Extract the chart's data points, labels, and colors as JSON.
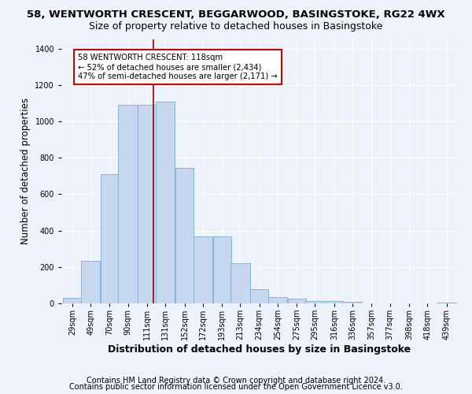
{
  "title1": "58, WENTWORTH CRESCENT, BEGGARWOOD, BASINGSTOKE, RG22 4WX",
  "title2": "Size of property relative to detached houses in Basingstoke",
  "xlabel": "Distribution of detached houses by size in Basingstoke",
  "ylabel": "Number of detached properties",
  "categories": [
    "29sqm",
    "49sqm",
    "70sqm",
    "90sqm",
    "111sqm",
    "131sqm",
    "152sqm",
    "172sqm",
    "193sqm",
    "213sqm",
    "234sqm",
    "254sqm",
    "275sqm",
    "295sqm",
    "316sqm",
    "336sqm",
    "357sqm",
    "377sqm",
    "398sqm",
    "418sqm",
    "439sqm"
  ],
  "values": [
    30,
    235,
    710,
    1090,
    1090,
    1110,
    745,
    370,
    370,
    220,
    80,
    35,
    25,
    15,
    15,
    10,
    0,
    0,
    0,
    0,
    5
  ],
  "bar_color": "#c5d8f0",
  "bar_edge_color": "#7aadd4",
  "vline_x_index": 4,
  "vline_color": "#8b0000",
  "annotation_text": "58 WENTWORTH CRESCENT: 118sqm\n← 52% of detached houses are smaller (2,434)\n47% of semi-detached houses are larger (2,171) →",
  "annotation_box_color": "#ffffff",
  "annotation_box_edge": "#cc0000",
  "footnote1": "Contains HM Land Registry data © Crown copyright and database right 2024.",
  "footnote2": "Contains public sector information licensed under the Open Government Licence v3.0.",
  "ylim": [
    0,
    1450
  ],
  "background_color": "#eef2fb",
  "grid_color": "#ffffff",
  "title1_fontsize": 9.5,
  "title2_fontsize": 9,
  "ylabel_fontsize": 8.5,
  "xlabel_fontsize": 9,
  "tick_fontsize": 7,
  "footnote_fontsize": 7
}
